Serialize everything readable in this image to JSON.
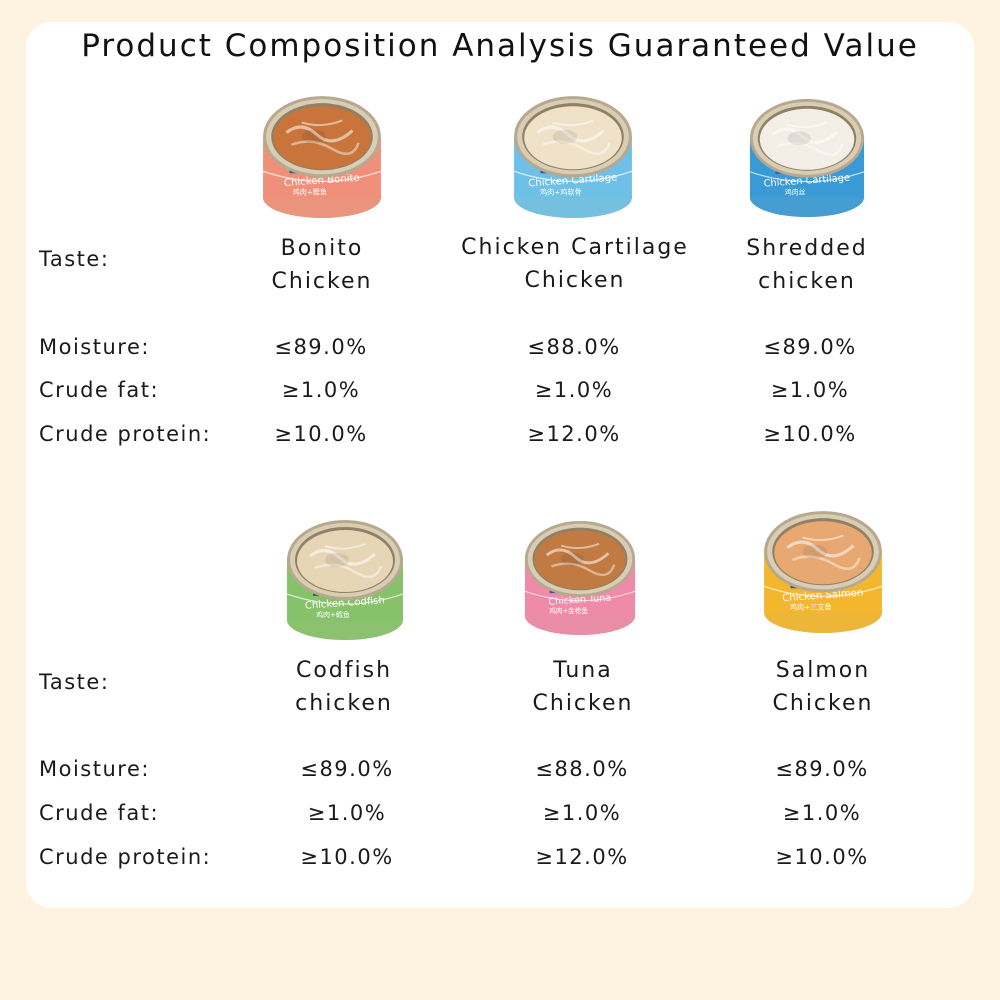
{
  "title": "Product Composition Analysis Guaranteed Value",
  "labels": {
    "taste": "Taste:",
    "moisture": "Moisture:",
    "fat": "Crude fat:",
    "protein": "Crude protein:"
  },
  "rows": [
    {
      "products": [
        {
          "taste_line1": "Bonito",
          "taste_line2": "Chicken",
          "moisture": "≤89.0%",
          "fat": "≥1.0%",
          "protein": "≥10.0%",
          "can_label": "Chicken Bonito",
          "can_sub": "鸡肉+鲣鱼",
          "label_color": "#f0907a",
          "meat_color": "#c8743a"
        },
        {
          "taste_line1": "Chicken Cartilage",
          "taste_line2": "Chicken",
          "moisture": "≤88.0%",
          "fat": "≥1.0%",
          "protein": "≥12.0%",
          "can_label": "Chicken Cartilage",
          "can_sub": "鸡肉+鸡软骨",
          "label_color": "#6ec0e6",
          "meat_color": "#efe2c8"
        },
        {
          "taste_line1": "Shredded",
          "taste_line2": "chicken",
          "moisture": "≤89.0%",
          "fat": "≥1.0%",
          "protein": "≥10.0%",
          "can_label": "Chicken Cartilage",
          "can_sub": "鸡肉丝",
          "label_color": "#3a9ad6",
          "meat_color": "#f3efe6"
        }
      ]
    },
    {
      "products": [
        {
          "taste_line1": "Codfish",
          "taste_line2": "chicken",
          "moisture": "≤89.0%",
          "fat": "≥1.0%",
          "protein": "≥10.0%",
          "can_label": "Chicken Codfish",
          "can_sub": "鸡肉+鳕鱼",
          "label_color": "#86c269",
          "meat_color": "#e6d6b6"
        },
        {
          "taste_line1": "Tuna",
          "taste_line2": "Chicken",
          "moisture": "≤88.0%",
          "fat": "≥1.0%",
          "protein": "≥12.0%",
          "can_label": "Chicken Tuna",
          "can_sub": "鸡肉+金枪鱼",
          "label_color": "#ef8aa8",
          "meat_color": "#c07a42"
        },
        {
          "taste_line1": "Salmon",
          "taste_line2": "Chicken",
          "moisture": "≤89.0%",
          "fat": "≥1.0%",
          "protein": "≥10.0%",
          "can_label": "Chicken Salmon",
          "can_sub": "鸡肉+三文鱼",
          "label_color": "#f4b62c",
          "meat_color": "#e8a872"
        }
      ]
    }
  ]
}
